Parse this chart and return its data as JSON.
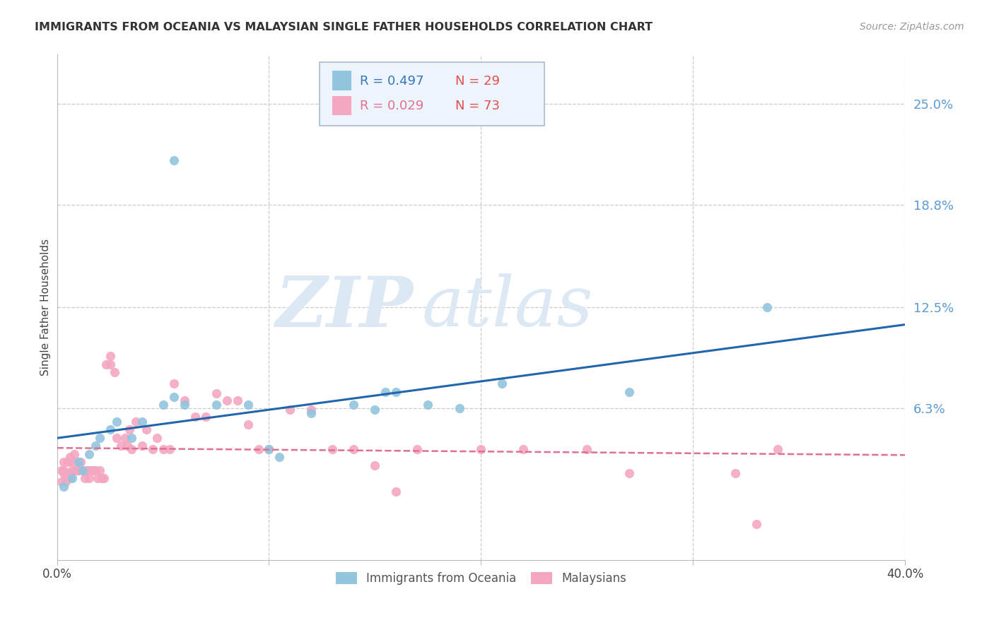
{
  "title": "IMMIGRANTS FROM OCEANIA VS MALAYSIAN SINGLE FATHER HOUSEHOLDS CORRELATION CHART",
  "source": "Source: ZipAtlas.com",
  "ylabel": "Single Father Households",
  "ytick_labels": [
    "25.0%",
    "18.8%",
    "12.5%",
    "6.3%"
  ],
  "ytick_values": [
    0.25,
    0.188,
    0.125,
    0.063
  ],
  "xlim": [
    0.0,
    0.4
  ],
  "ylim": [
    -0.03,
    0.28
  ],
  "legend_label_blue": "Immigrants from Oceania",
  "legend_label_pink": "Malaysians",
  "blue_color": "#92c5de",
  "pink_color": "#f4a6c0",
  "line_blue": "#2166ac",
  "line_pink": "#e07090",
  "watermark_zip": "ZIP",
  "watermark_atlas": "atlas",
  "watermark_color": "#dce9f5",
  "blue_scatter_x": [
    0.055,
    0.003,
    0.007,
    0.01,
    0.012,
    0.015,
    0.018,
    0.02,
    0.025,
    0.028,
    0.035,
    0.04,
    0.05,
    0.055,
    0.06,
    0.075,
    0.09,
    0.1,
    0.105,
    0.12,
    0.14,
    0.15,
    0.155,
    0.16,
    0.175,
    0.19,
    0.21,
    0.27,
    0.335
  ],
  "blue_scatter_y": [
    0.215,
    0.015,
    0.02,
    0.03,
    0.025,
    0.035,
    0.04,
    0.045,
    0.05,
    0.055,
    0.045,
    0.055,
    0.065,
    0.07,
    0.065,
    0.065,
    0.065,
    0.038,
    0.033,
    0.06,
    0.065,
    0.062,
    0.073,
    0.073,
    0.065,
    0.063,
    0.078,
    0.073,
    0.125
  ],
  "pink_scatter_x": [
    0.002,
    0.003,
    0.003,
    0.004,
    0.005,
    0.005,
    0.006,
    0.007,
    0.007,
    0.008,
    0.008,
    0.009,
    0.01,
    0.01,
    0.011,
    0.012,
    0.013,
    0.014,
    0.015,
    0.015,
    0.016,
    0.017,
    0.018,
    0.019,
    0.02,
    0.021,
    0.022,
    0.023,
    0.025,
    0.025,
    0.027,
    0.028,
    0.03,
    0.032,
    0.033,
    0.034,
    0.035,
    0.037,
    0.04,
    0.042,
    0.045,
    0.047,
    0.05,
    0.053,
    0.055,
    0.06,
    0.065,
    0.07,
    0.075,
    0.08,
    0.085,
    0.09,
    0.095,
    0.1,
    0.11,
    0.12,
    0.13,
    0.14,
    0.15,
    0.16,
    0.17,
    0.2,
    0.22,
    0.25,
    0.27,
    0.32,
    0.33,
    0.34,
    0.002,
    0.003,
    0.004,
    0.005,
    0.006
  ],
  "pink_scatter_y": [
    0.025,
    0.025,
    0.03,
    0.02,
    0.02,
    0.03,
    0.02,
    0.025,
    0.03,
    0.025,
    0.035,
    0.025,
    0.025,
    0.03,
    0.03,
    0.025,
    0.02,
    0.025,
    0.02,
    0.025,
    0.025,
    0.025,
    0.025,
    0.02,
    0.025,
    0.02,
    0.02,
    0.09,
    0.09,
    0.095,
    0.085,
    0.045,
    0.04,
    0.045,
    0.04,
    0.05,
    0.038,
    0.055,
    0.04,
    0.05,
    0.038,
    0.045,
    0.038,
    0.038,
    0.078,
    0.068,
    0.058,
    0.058,
    0.072,
    0.068,
    0.068,
    0.053,
    0.038,
    0.038,
    0.062,
    0.062,
    0.038,
    0.038,
    0.028,
    0.012,
    0.038,
    0.038,
    0.038,
    0.038,
    0.023,
    0.023,
    -0.008,
    0.038,
    0.018,
    0.023,
    0.018,
    0.023,
    0.033
  ]
}
